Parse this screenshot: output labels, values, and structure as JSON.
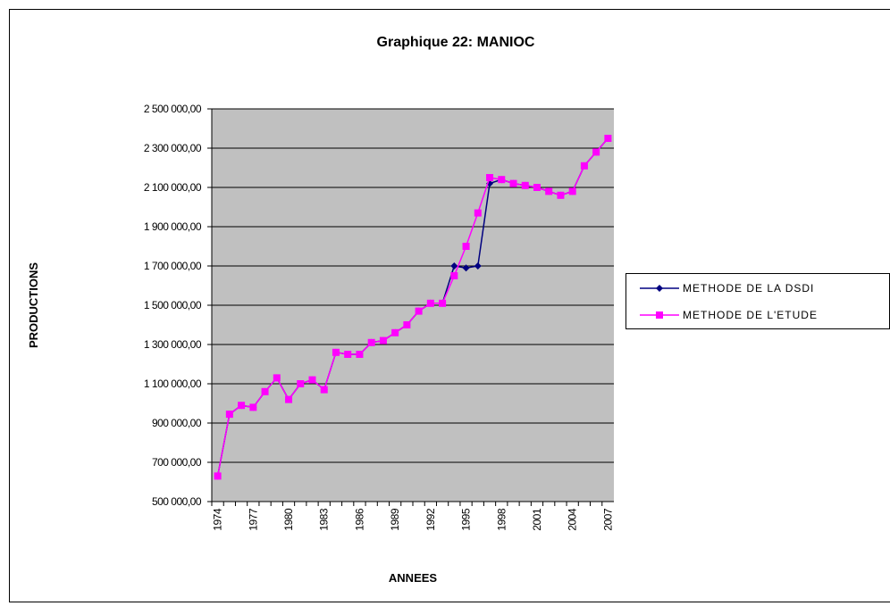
{
  "chart_data": {
    "type": "line",
    "title": "Graphique 22: MANIOC",
    "xlabel": "ANNEES",
    "ylabel": "PRODUCTIONS",
    "categories": [
      "1974",
      null,
      null,
      "1977",
      null,
      null,
      "1980",
      null,
      null,
      "1983",
      null,
      null,
      "1986",
      null,
      null,
      "1989",
      null,
      null,
      "1992",
      null,
      null,
      "1995",
      null,
      null,
      "1998",
      null,
      null,
      "2001",
      null,
      null,
      "2004",
      null,
      null,
      "2007"
    ],
    "series": [
      {
        "name": "METHODE DE LA DSDI",
        "color": "#000080",
        "marker": "diamond",
        "values": [
          630000,
          945000,
          990000,
          980000,
          1060000,
          1130000,
          1020000,
          1100000,
          1120000,
          1070000,
          1260000,
          1250000,
          1250000,
          1310000,
          1320000,
          1360000,
          1400000,
          1470000,
          1510000,
          1510000,
          1700000,
          1690000,
          1700000,
          2120000,
          2140000,
          2120000,
          2110000,
          2100000,
          2080000,
          2060000,
          2080000,
          2210000,
          2280000,
          2350000
        ]
      },
      {
        "name": "METHODE DE L'ETUDE",
        "color": "#ff00ff",
        "marker": "square",
        "values": [
          630000,
          945000,
          990000,
          980000,
          1060000,
          1130000,
          1020000,
          1100000,
          1120000,
          1070000,
          1260000,
          1250000,
          1250000,
          1310000,
          1320000,
          1360000,
          1400000,
          1470000,
          1510000,
          1510000,
          1650000,
          1800000,
          1970000,
          2150000,
          2140000,
          2120000,
          2110000,
          2100000,
          2080000,
          2060000,
          2080000,
          2210000,
          2280000,
          2350000
        ]
      }
    ],
    "ylim": [
      500000,
      2500000
    ],
    "yticks": [
      {
        "value": 500000,
        "label": "500 000,00"
      },
      {
        "value": 700000,
        "label": "700 000,00"
      },
      {
        "value": 900000,
        "label": "900 000,00"
      },
      {
        "value": 1100000,
        "label": "1 100 000,00"
      },
      {
        "value": 1300000,
        "label": "1 300 000,00"
      },
      {
        "value": 1500000,
        "label": "1 500 000,00"
      },
      {
        "value": 1700000,
        "label": "1 700 000,00"
      },
      {
        "value": 1900000,
        "label": "1 900 000,00"
      },
      {
        "value": 2100000,
        "label": "2 100 000,00"
      },
      {
        "value": 2300000,
        "label": "2 300 000,00"
      },
      {
        "value": 2500000,
        "label": "2 500 000,00"
      }
    ],
    "grid": true,
    "legend": "right",
    "plot_background": "#c0c0c0"
  }
}
